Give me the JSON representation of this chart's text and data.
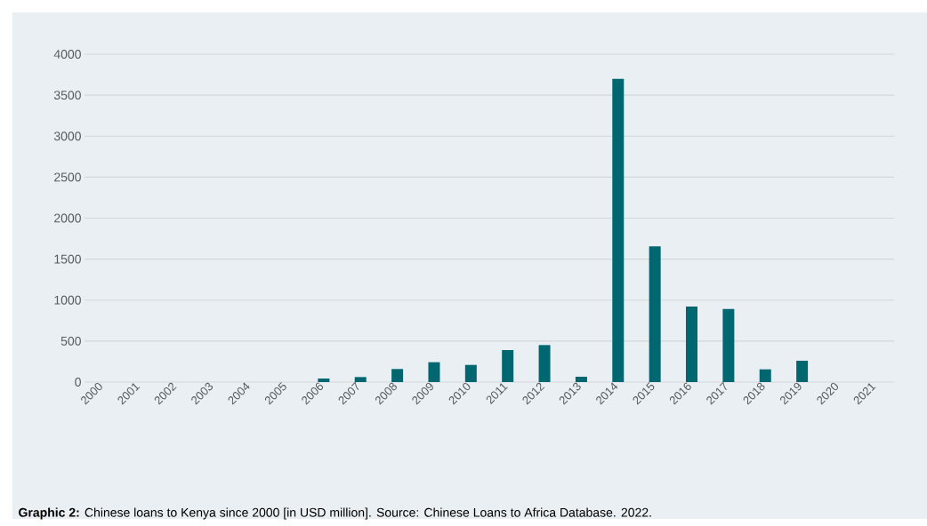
{
  "chart_data": {
    "type": "bar",
    "categories": [
      "2000",
      "2001",
      "2002",
      "2003",
      "2004",
      "2005",
      "2006",
      "2007",
      "2008",
      "2009",
      "2010",
      "2011",
      "2012",
      "2013",
      "2014",
      "2015",
      "2016",
      "2017",
      "2018",
      "2019",
      "2020",
      "2021"
    ],
    "values": [
      null,
      null,
      null,
      null,
      null,
      null,
      43,
      61,
      159,
      242,
      209,
      390,
      451,
      65,
      3700,
      1657,
      920,
      892,
      155,
      260,
      null,
      null
    ],
    "color": "#006670",
    "ylim": [
      0,
      4000
    ],
    "yticks": [
      0,
      500,
      1000,
      1500,
      2000,
      2500,
      3000,
      3500,
      4000
    ],
    "grid": "y",
    "annotations": [
      "**Graphic 2:** Chinese loans to Kenya since 2000 [in USD million]. Source: Chinese Loans to Africa Database. 2022."
    ]
  }
}
